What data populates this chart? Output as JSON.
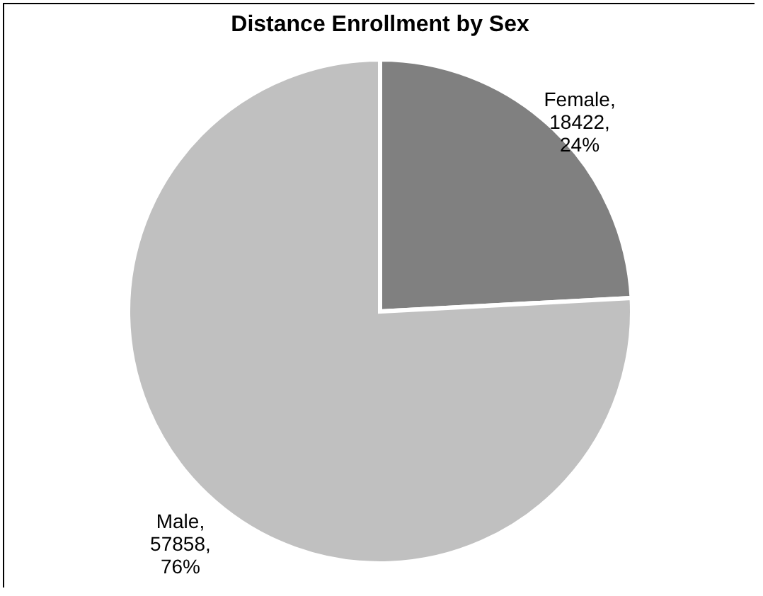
{
  "chart_data": {
    "type": "pie",
    "title": "Distance Enrollment by Sex",
    "categories": [
      "Female",
      "Male"
    ],
    "values": [
      18422,
      57858
    ],
    "colors": [
      "#808080",
      "#c0c0c0"
    ],
    "value_labels": [
      ", 18422, 24%",
      ", 57858, 76%"
    ],
    "legend": false
  }
}
